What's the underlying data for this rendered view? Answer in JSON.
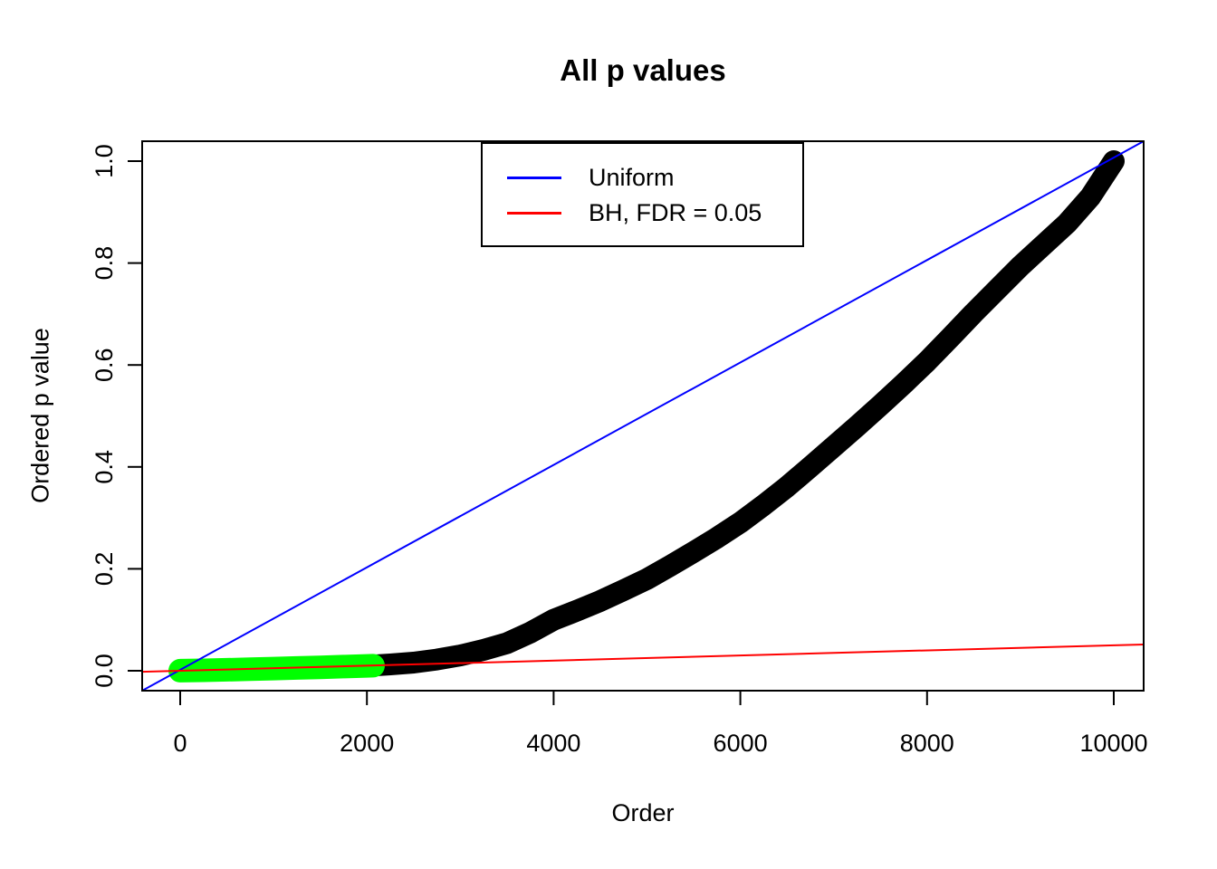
{
  "chart_data": {
    "type": "scatter",
    "title": "All p values",
    "xlabel": "Order",
    "ylabel": "Ordered p value",
    "xlim": [
      0,
      10000
    ],
    "ylim": [
      0,
      1
    ],
    "x_ticks": [
      0,
      2000,
      4000,
      6000,
      8000,
      10000
    ],
    "y_ticks": [
      "0.0",
      "0.2",
      "0.4",
      "0.6",
      "0.8",
      "1.0"
    ],
    "grid": false,
    "background": "#ffffff",
    "axis_color": "#000000",
    "legend": {
      "position": "top-center",
      "border": true,
      "entries": [
        {
          "label": "Uniform",
          "color": "#0000FF"
        },
        {
          "label": "BH, FDR = 0.05",
          "color": "#FF0000"
        }
      ]
    },
    "series": [
      {
        "name": "ordered-p-values",
        "kind": "points",
        "color": "#000000",
        "size": 24,
        "points": [
          [
            0,
            0.0001
          ],
          [
            250,
            0.0009
          ],
          [
            500,
            0.0019
          ],
          [
            750,
            0.003
          ],
          [
            1000,
            0.0043
          ],
          [
            1250,
            0.0055
          ],
          [
            1500,
            0.0068
          ],
          [
            1750,
            0.0082
          ],
          [
            2000,
            0.0096
          ],
          [
            2250,
            0.0125
          ],
          [
            2500,
            0.016
          ],
          [
            2750,
            0.022
          ],
          [
            3000,
            0.03
          ],
          [
            3250,
            0.041
          ],
          [
            3500,
            0.054
          ],
          [
            3750,
            0.075
          ],
          [
            4000,
            0.1
          ],
          [
            4250,
            0.118
          ],
          [
            4500,
            0.137
          ],
          [
            4750,
            0.158
          ],
          [
            5000,
            0.18
          ],
          [
            5250,
            0.206
          ],
          [
            5500,
            0.233
          ],
          [
            5750,
            0.261
          ],
          [
            6000,
            0.291
          ],
          [
            6250,
            0.325
          ],
          [
            6500,
            0.361
          ],
          [
            6750,
            0.4
          ],
          [
            7000,
            0.44
          ],
          [
            7250,
            0.48
          ],
          [
            7500,
            0.521
          ],
          [
            7750,
            0.563
          ],
          [
            8000,
            0.607
          ],
          [
            8250,
            0.654
          ],
          [
            8500,
            0.702
          ],
          [
            8750,
            0.748
          ],
          [
            9000,
            0.794
          ],
          [
            9250,
            0.836
          ],
          [
            9500,
            0.878
          ],
          [
            9750,
            0.93
          ],
          [
            10000,
            1.0
          ]
        ]
      },
      {
        "name": "bh-significant",
        "kind": "points",
        "color": "#00FF00",
        "size": 26,
        "points": [
          [
            0,
            0.0001
          ],
          [
            250,
            0.0009
          ],
          [
            500,
            0.0019
          ],
          [
            750,
            0.003
          ],
          [
            1000,
            0.0043
          ],
          [
            1250,
            0.0055
          ],
          [
            1500,
            0.0068
          ],
          [
            1750,
            0.0082
          ],
          [
            2000,
            0.0096
          ],
          [
            2066,
            0.01
          ]
        ]
      },
      {
        "name": "uniform",
        "kind": "line",
        "color": "#0000FF",
        "width": 2,
        "from": [
          0,
          0
        ],
        "to": [
          10000,
          1
        ]
      },
      {
        "name": "bh-fdr-line",
        "kind": "line",
        "color": "#FF0000",
        "width": 2,
        "from": [
          0,
          0
        ],
        "to": [
          10000,
          0.05
        ]
      }
    ]
  }
}
